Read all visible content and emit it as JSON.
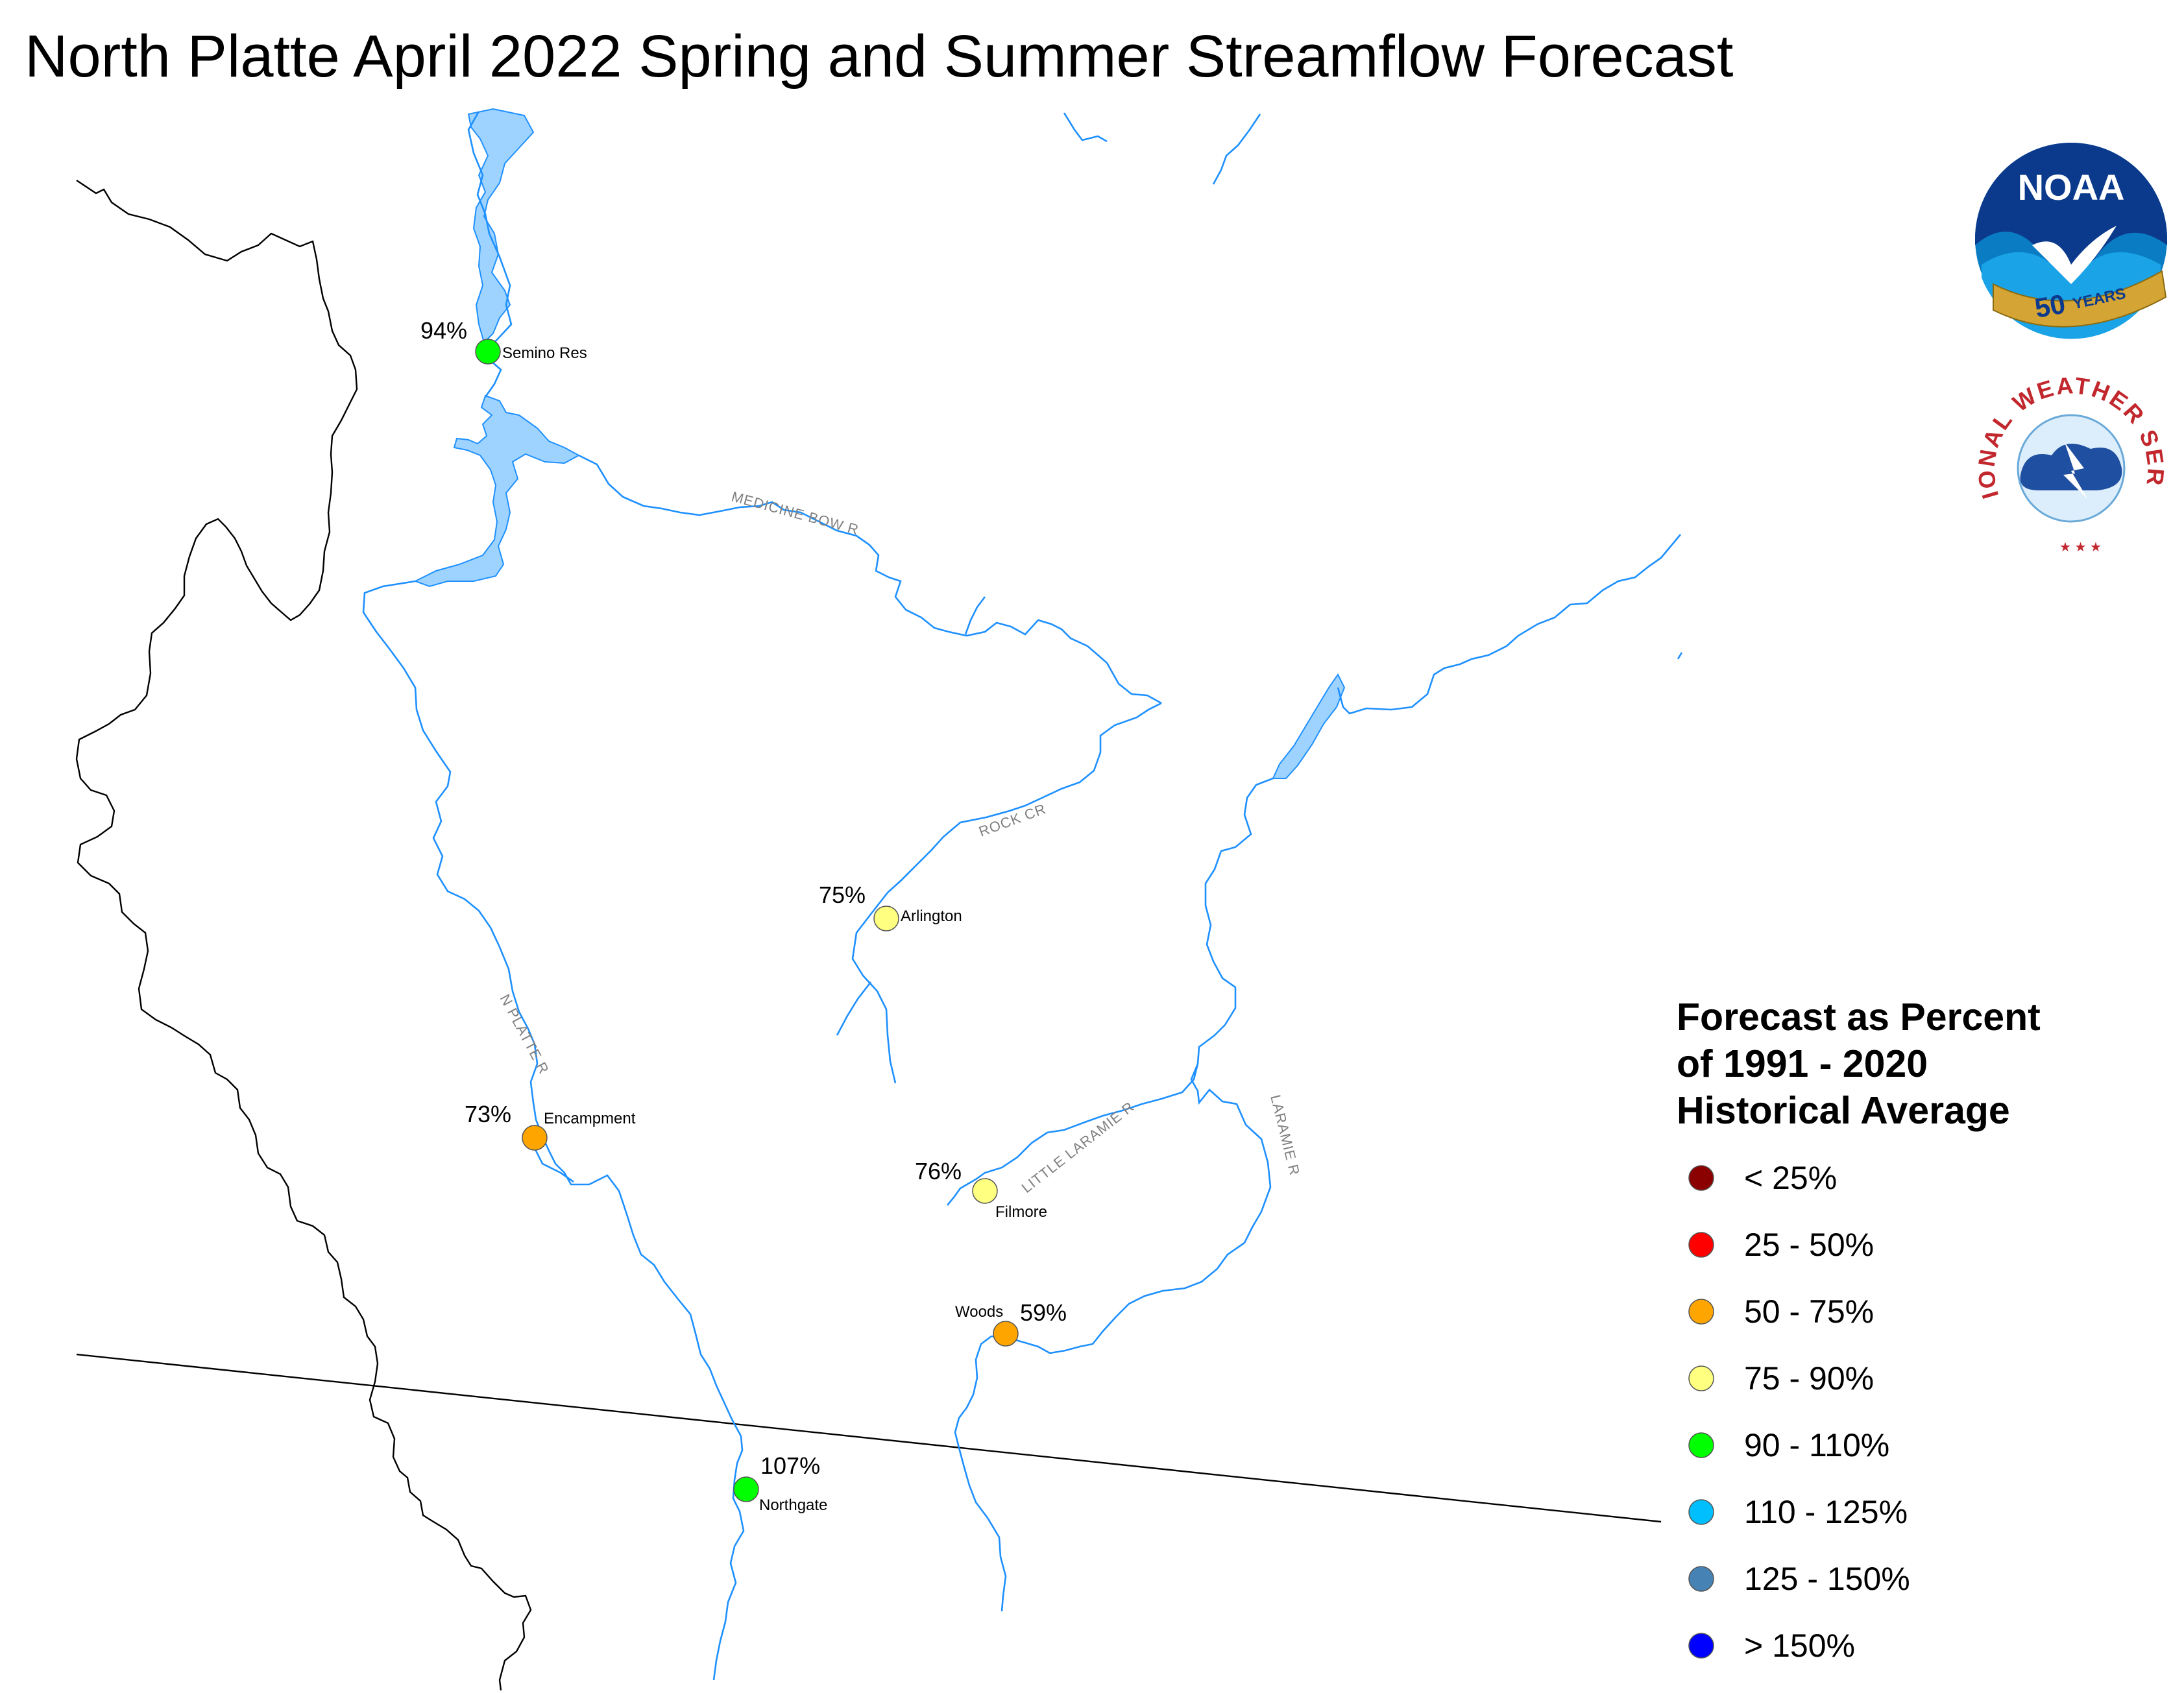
{
  "title": "North Platte April 2022 Spring and Summer Streamflow Forecast",
  "colors": {
    "river": "#1e90ff",
    "reservoir_fill": "#9fd3ff",
    "border": "#000000",
    "state_line": "#000000"
  },
  "rivers": [
    {
      "label": "MEDICINE BOW R"
    },
    {
      "label": "ROCK CR"
    },
    {
      "label": "N PLATTE R"
    },
    {
      "label": "LITTLE LARAMIE R"
    },
    {
      "label": "LARAMIE R"
    }
  ],
  "stations": [
    {
      "name": "Semino Res",
      "percent": "94%",
      "category": "90 - 110%"
    },
    {
      "name": "Arlington",
      "percent": "75%",
      "category": "75 - 90%"
    },
    {
      "name": "Encampment",
      "percent": "73%",
      "category": "50 - 75%"
    },
    {
      "name": "Filmore",
      "percent": "76%",
      "category": "75 - 90%"
    },
    {
      "name": "Woods",
      "percent": "59%",
      "category": "50 - 75%"
    },
    {
      "name": "Northgate",
      "percent": "107%",
      "category": "90 - 110%"
    }
  ],
  "legend": {
    "title_lines": [
      "Forecast as Percent",
      "of 1991 - 2020",
      "Historical Average"
    ],
    "items": [
      {
        "label": "< 25%",
        "color": "#8b0000"
      },
      {
        "label": "25 - 50%",
        "color": "#ff0000"
      },
      {
        "label": "50 - 75%",
        "color": "#ffa500"
      },
      {
        "label": "75 - 90%",
        "color": "#ffff80"
      },
      {
        "label": "90 - 110%",
        "color": "#00ff00"
      },
      {
        "label": "110 - 125%",
        "color": "#00bfff"
      },
      {
        "label": "125 - 150%",
        "color": "#4682b4"
      },
      {
        "label": "> 150%",
        "color": "#0000ff"
      }
    ]
  },
  "logos": {
    "noaa": {
      "name": "NOAA",
      "ribbon": "50",
      "ribbon_word": "YEARS",
      "icon": "noaa-logo-icon"
    },
    "nws": {
      "name": "NATIONAL WEATHER SERVICE",
      "icon": "nws-logo-icon"
    }
  }
}
